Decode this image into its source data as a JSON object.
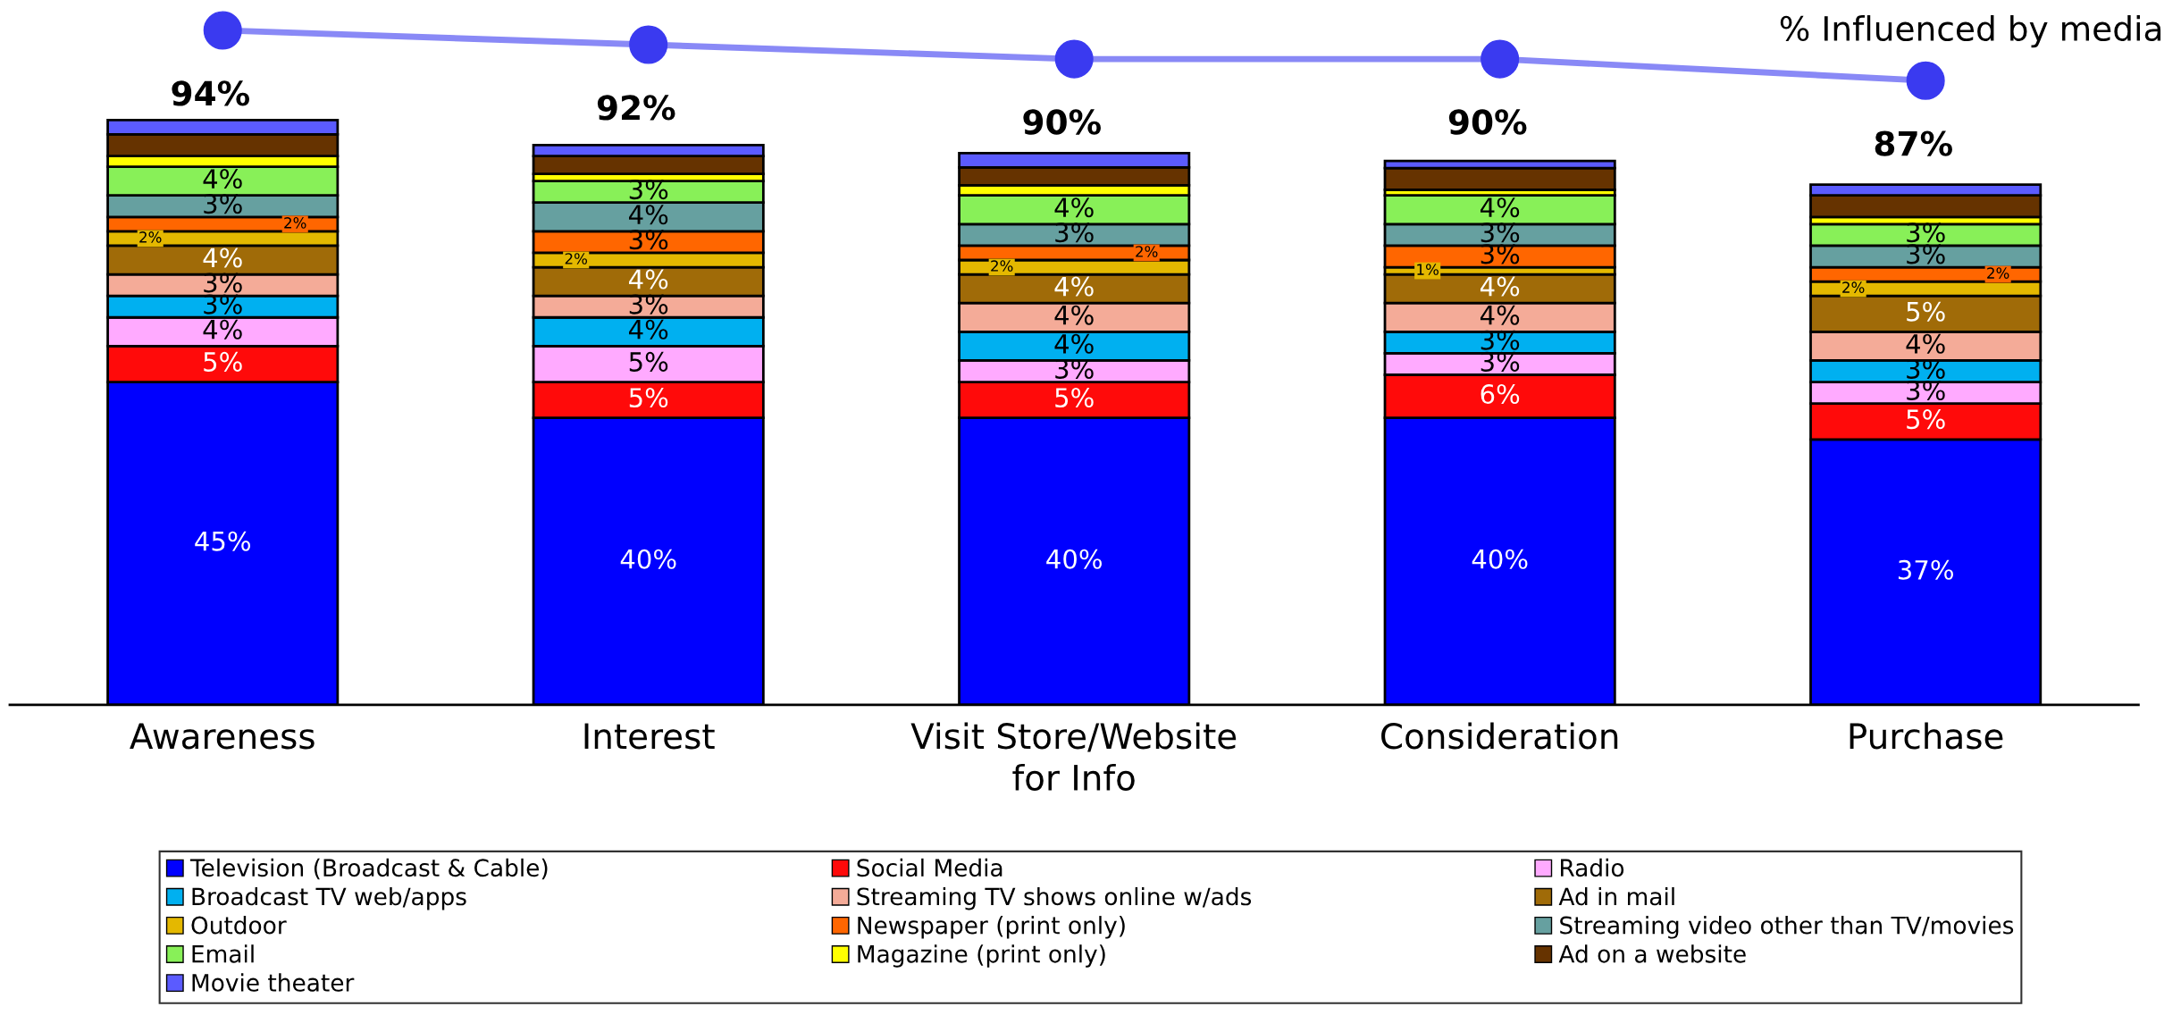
{
  "chart_data": {
    "type": "bar",
    "stacked": true,
    "categories": [
      "Awareness",
      "Interest",
      "Visit Store/Website\nfor Info",
      "Consideration",
      "Purchase"
    ],
    "tick_labels": "x",
    "legend": "bottom",
    "annotations": [
      "% Influenced by media"
    ],
    "series": [
      {
        "name": "Television (Broadcast & Cable)",
        "color": "#0000ff",
        "values": [
          45,
          40,
          40,
          40,
          37
        ],
        "value_labels": [
          "45%",
          "40%",
          "40%",
          "40%",
          "37%"
        ]
      },
      {
        "name": "Social Media",
        "color": "#ff0a0a",
        "values": [
          5,
          5,
          5,
          6,
          5
        ],
        "value_labels": [
          "5%",
          "5%",
          "5%",
          "6%",
          "5%"
        ]
      },
      {
        "name": "Radio",
        "color": "#ffaaff",
        "values": [
          4,
          5,
          3,
          3,
          3
        ],
        "value_labels": [
          "4%",
          "5%",
          "3%",
          "3%",
          "3%"
        ]
      },
      {
        "name": "Broadcast TV web/apps",
        "color": "#00b0f0",
        "values": [
          3,
          4,
          4,
          3,
          3
        ],
        "value_labels": [
          "3%",
          "4%",
          "4%",
          "3%",
          "3%"
        ]
      },
      {
        "name": "Streaming TV shows online w/ads",
        "color": "#f4ab98",
        "values": [
          3,
          3,
          4,
          4,
          4
        ],
        "value_labels": [
          "3%",
          "3%",
          "4%",
          "4%",
          "4%"
        ]
      },
      {
        "name": "Ad in mail",
        "color": "#a06b08",
        "values": [
          4,
          4,
          4,
          4,
          5
        ],
        "value_labels": [
          "4%",
          "4%",
          "4%",
          "4%",
          "5%"
        ]
      },
      {
        "name": "Outdoor",
        "color": "#e4b800",
        "values": [
          2,
          2,
          2,
          1,
          2
        ],
        "value_labels": [
          "2%",
          "2%",
          "2%",
          "1%",
          "2%"
        ]
      },
      {
        "name": "Newspaper (print only)",
        "color": "#ff6600",
        "values": [
          2,
          3,
          2,
          3,
          2
        ],
        "value_labels": [
          "2%",
          "3%",
          "2%",
          "3%",
          "2%"
        ]
      },
      {
        "name": "Streaming video other than TV/movies",
        "color": "#66a0a0",
        "values": [
          3,
          4,
          3,
          3,
          3
        ],
        "value_labels": [
          "3%",
          "4%",
          "3%",
          "3%",
          "3%"
        ]
      },
      {
        "name": "Email",
        "color": "#88f058",
        "values": [
          4,
          3,
          4,
          4,
          3
        ],
        "value_labels": [
          "4%",
          "3%",
          "4%",
          "4%",
          "3%"
        ]
      },
      {
        "name": "Magazine (print only)",
        "color": "#ffff00",
        "values": [
          1.5,
          1,
          1.4,
          0.8,
          1
        ]
      },
      {
        "name": "Ad on a website",
        "color": "#663300",
        "values": [
          3,
          2.5,
          2.5,
          3,
          3
        ]
      },
      {
        "name": "Movie theater",
        "color": "#5b5bff",
        "values": [
          2,
          1.5,
          2,
          1,
          1.5
        ]
      },
      {
        "type": "line",
        "color": "#3a3af0",
        "marker": "circle",
        "values": [
          94,
          92,
          90,
          90,
          87
        ],
        "value_labels": [
          "94%",
          "92%",
          "90%",
          "90%",
          "87%"
        ]
      }
    ]
  }
}
